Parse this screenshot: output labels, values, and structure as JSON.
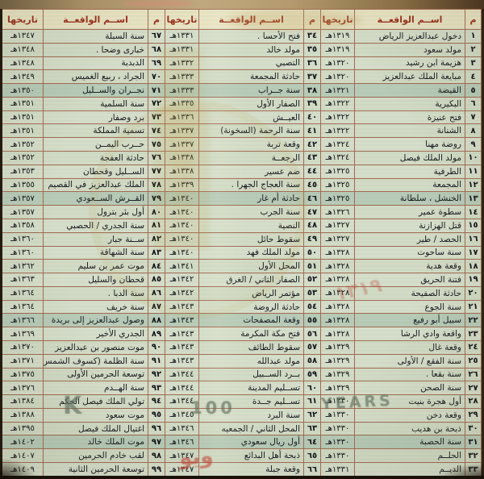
{
  "document": {
    "description": "جدول الوقائع والأحداث التاريخية",
    "columns": {
      "num": "م",
      "event": "اســم الواقعــة",
      "date": "تاريخها"
    },
    "rows": [
      [
        "١",
        "دخول عبدالعزيز الرياض",
        "١٣١٩هـ",
        "٣٤",
        "فتح الأحسا .",
        "١٣٣١هـ",
        "٦٧",
        "سنة السبلة",
        "١٣٤٧هـ"
      ],
      [
        "٢",
        "مولد سعود",
        "١٣١٩هـ",
        "٣٥",
        "مولد خالد",
        "١٣٣١هـ",
        "٦٨",
        "خبارى وضحا .",
        "١٣٤٨هـ"
      ],
      [
        "٣",
        "هزيمة ابن رشيد",
        "١٣٢٠هـ",
        "٣٦",
        "التصبي",
        "١٣٣٢هـ",
        "٦٩",
        "الدبدبة",
        "١٣٤٨هـ"
      ],
      [
        "٤",
        "مبايعة الملك عبدالعزيز",
        "١٣٢٠هـ",
        "٣٧",
        "حادثة المجمعة",
        "١٣٣٣هـ",
        "٧٠",
        "الجراد ، ربيع الغميس",
        "١٣٤٩هـ"
      ],
      [
        "٥",
        "القيضة",
        "١٣٢١هـ",
        "٣٨",
        "سنة جــراب",
        "١٣٣٣هـ",
        "٧١",
        "نجــران والســليل",
        "١٣٥٠هـ"
      ],
      [
        "٦",
        "البكيرية",
        "١٣٢٢هـ",
        "٣٩",
        "الصفار الأول",
        "١٣٣٥هـ",
        "٧٢",
        "سنة السلمية",
        "١٣٥١هـ"
      ],
      [
        "٧",
        "فتح عنيزة",
        "١٣٢٢هـ",
        "٤٠",
        "العيــش",
        "١٣٣٦هـ",
        "٧٣",
        "برد وصفار",
        "١٣٥١هـ"
      ],
      [
        "٨",
        "الشنانة",
        "١٣٢٢هـ",
        "٤١",
        "سنة الرحمة (السخونة)",
        "١٣٣٧هـ",
        "٧٤",
        "تسمية المملكة",
        "١٣٥١هـ"
      ],
      [
        "٩",
        "روضة مهنا",
        "١٣٢٤هـ",
        "٤٢",
        "وقعة تربة",
        "١٣٣٧هـ",
        "٧٥",
        "حــرب اليمــن",
        "١٣٥٢هـ"
      ],
      [
        "١٠",
        "مولد الملك فيصل",
        "١٣٢٤هـ",
        "٤٣",
        "الرجعــة",
        "١٣٣٨هـ",
        "٧٦",
        "حادثة العفجة",
        "١٣٥٢هـ"
      ],
      [
        "١١",
        "الطرفية",
        "١٣٢٥هـ",
        "٤٤",
        "ضم عسير",
        "١٣٣٨هـ",
        "٧٧",
        "الســليل وقحطان",
        "١٣٥٣هـ"
      ],
      [
        "١٢",
        "المجمعة",
        "١٣٢٥هـ",
        "٤٥",
        "سنة العجاج الجهرا .",
        "١٣٣٩هـ",
        "٧٨",
        "الملك عبدالعزيز في القصيم",
        "١٣٥٥هـ"
      ],
      [
        "١٣",
        "الخنشل ، سلطانة",
        "١٣٢٥هـ",
        "٤٦",
        "حادثة أم غار",
        "١٣٤٠هـ",
        "٧٩",
        "القــرش الســعودي",
        "١٣٥٧هـ"
      ],
      [
        "١٤",
        "سطوة عمير",
        "١٣٢٦هـ",
        "٤٧",
        "سنة الجرب",
        "١٣٤٠هـ",
        "٨٠",
        "أول بئر بترول",
        "١٣٥٧هـ"
      ],
      [
        "١٥",
        "قتل الهزازنة",
        "١٣٢٧هـ",
        "٤٨",
        "النصية",
        "١٣٤٠هـ",
        "٨١",
        "سنة الجدري / الحصبي",
        "١٣٥٨هـ"
      ],
      [
        "١٦",
        "الحصد / طير",
        "١٣٢٧هـ",
        "٤٩",
        "سقوط حائل",
        "١٣٤٠هـ",
        "٨٢",
        "ســنة جبار",
        "١٣٦٠هـ"
      ],
      [
        "١٧",
        "سنة ساحوت",
        "١٣٢٨هـ",
        "٥٠",
        "مولد الملك فهد",
        "١٣٤٠هـ",
        "٨٣",
        "سنة الشهاقة",
        "١٣٦٠هـ"
      ],
      [
        "١٨",
        "وقعة هدية",
        "١٣٢٨هـ",
        "٥١",
        "المحل الأول",
        "١٣٤١هـ",
        "٨٤",
        "موت عمر بن سليم",
        "١٣٦٢هـ"
      ],
      [
        "١٩",
        "فتنة الحريق",
        "١٣٢٨هـ",
        "٥٢",
        "الصفار الثاني / الغرق",
        "١٣٤٢هـ",
        "٨٥",
        "قحطان والسليل",
        "١٣٦٣هـ"
      ],
      [
        "٢٠",
        "حادثة الصفيحة",
        "١٣٢٨هـ",
        "٥٣",
        "مؤتمر الرياض",
        "١٣٤٢هـ",
        "٨٦",
        "سنة الدبا .",
        "١٣٦٤هـ"
      ],
      [
        "٢١",
        "سنة الجوع",
        "١٣٢٨هـ",
        "٥٤",
        "حادثة الروضة",
        "١٣٤٣هـ",
        "٨٧",
        "سنة خريف",
        "١٣٦٤هـ"
      ],
      [
        "٢٢",
        "سبيل أبو رفيع",
        "١٣٢٨هـ",
        "٥٥",
        "وقعة المصفحات",
        "١٣٤٣هـ",
        "٨٨",
        "وصول عبدالعزيز إلى بريدة",
        "١٣٦٦هـ"
      ],
      [
        "٢٣",
        "واقعة وادي الرشا",
        "١٣٢٨هـ",
        "٥٦",
        "فتح مكة المكرمة",
        "١٣٤٣هـ",
        "٨٩",
        "الجدري الأخير",
        "١٣٦٩هـ"
      ],
      [
        "٢٤",
        "وقعة غال",
        "١٣٢٩هـ",
        "٥٧",
        "سقوط الطائف",
        "١٣٤٣هـ",
        "٩٠",
        "موت منصور بن عبدالعزيز",
        "١٣٧٠هـ"
      ],
      [
        "٢٥",
        "سنة الفقع / الأولى",
        "١٣٢٩هـ",
        "٥٨",
        "مولد عبدالله",
        "١٣٤٣هـ",
        "٩١",
        "سنة الظلمة (كسوف الشمس)",
        "١٣٧١هـ"
      ],
      [
        "٢٦",
        "سنة بقعا .",
        "١٣٢٩هـ",
        "٥٩",
        "بــرد الســبيل",
        "١٣٤٤هـ",
        "٩٢",
        "توسعة الحرمين الأولى",
        "١٣٧٥هـ"
      ],
      [
        "٢٧",
        "سنة الصحن",
        "١٣٢٩هـ",
        "٦٠",
        "تســليم المدينة",
        "١٣٤٤هـ",
        "٩٣",
        "سنة الهــدم",
        "١٣٧٦هـ"
      ],
      [
        "٢٨",
        "أول هجرة بنيت",
        "١٣٣٠هـ",
        "٦١",
        "تســليم جــدة",
        "١٣٤٤هـ",
        "٩٤",
        "تولي الملك فيصل الحكم",
        "١٣٨٤هـ"
      ],
      [
        "٢٩",
        "وقعة دخن",
        "١٣٣٠هـ",
        "٦٢",
        "سنة البرد",
        "١٣٤٥هـ",
        "٩٥",
        "موت سعود",
        "١٣٨٨هـ"
      ],
      [
        "٣٠",
        "ذبحة بن هديب",
        "١٣٣٠هـ",
        "٦٣",
        "المحل الثاني / الجمعيه",
        "١٣٤٦هـ",
        "٩٦",
        "اغتيال الملك فيصل",
        "١٣٩٥هـ"
      ],
      [
        "٣١",
        "سنة الحصبة",
        "١٣٣٠هـ",
        "٦٤",
        "أول ريال سعودي",
        "١٣٤٦هـ",
        "٩٧",
        "موت الملك خالد",
        "١٤٠٢هـ"
      ],
      [
        "٣٢",
        "الحلــم",
        "١٣٣٠هـ",
        "٦٥",
        "ذبحة أهل البدائع",
        "١٣٤٧هـ",
        "٩٨",
        "لقب خادم الحرمين",
        "١٤٠٧هـ"
      ],
      [
        "٣٣",
        "الديــم",
        "١٣٣١هـ",
        "٦٦",
        "وقعة جبلة",
        "١٣٤٧هـ",
        "٩٩",
        "توسعة الحرمين الثانية",
        "١٤٠٩هـ"
      ]
    ],
    "band_rows": [
      5,
      13,
      22,
      31
    ]
  },
  "watermarks": {
    "k": "K",
    "hundred": "100",
    "years": "YEARS",
    "red_script": "ويو",
    "red_year": "١٣١٩"
  },
  "colors": {
    "paper": "#d6dfcb",
    "header_bg": "#e8e4c4",
    "header_text": "#9c2f1c",
    "grid": "#a26a52",
    "body_text": "#181820"
  }
}
